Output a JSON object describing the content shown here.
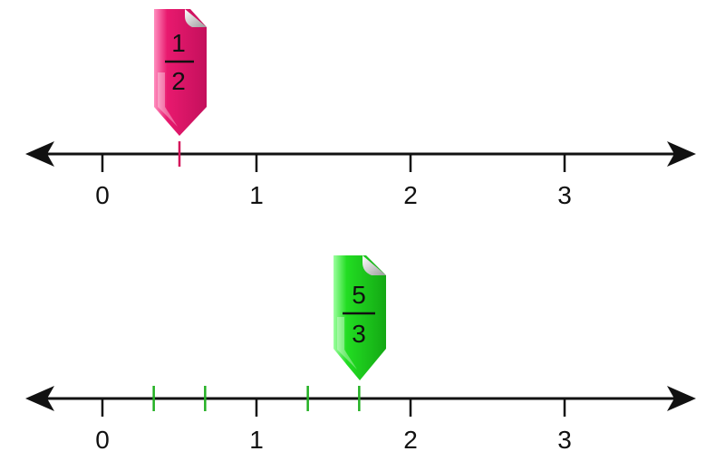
{
  "number_lines": [
    {
      "id": "top",
      "tick_labels": [
        "0",
        "1",
        "2",
        "3"
      ],
      "tick_values": [
        0,
        1,
        2,
        3
      ],
      "marks": [
        0.5
      ],
      "mark_color": "#d4145a",
      "marker": {
        "numerator": "1",
        "denominator": "2",
        "value": 0.5,
        "color": "#e8196e",
        "color_dark": "#b01050"
      }
    },
    {
      "id": "bottom",
      "tick_labels": [
        "0",
        "1",
        "2",
        "3"
      ],
      "tick_values": [
        0,
        1,
        2,
        3
      ],
      "marks": [
        0.3333,
        0.6667,
        1.3333,
        1.6667
      ],
      "mark_color": "#22b022",
      "marker": {
        "numerator": "5",
        "denominator": "3",
        "value": 1.6667,
        "color": "#22dd22",
        "color_dark": "#16a016"
      }
    }
  ],
  "colors": {
    "axis": "#111111"
  }
}
